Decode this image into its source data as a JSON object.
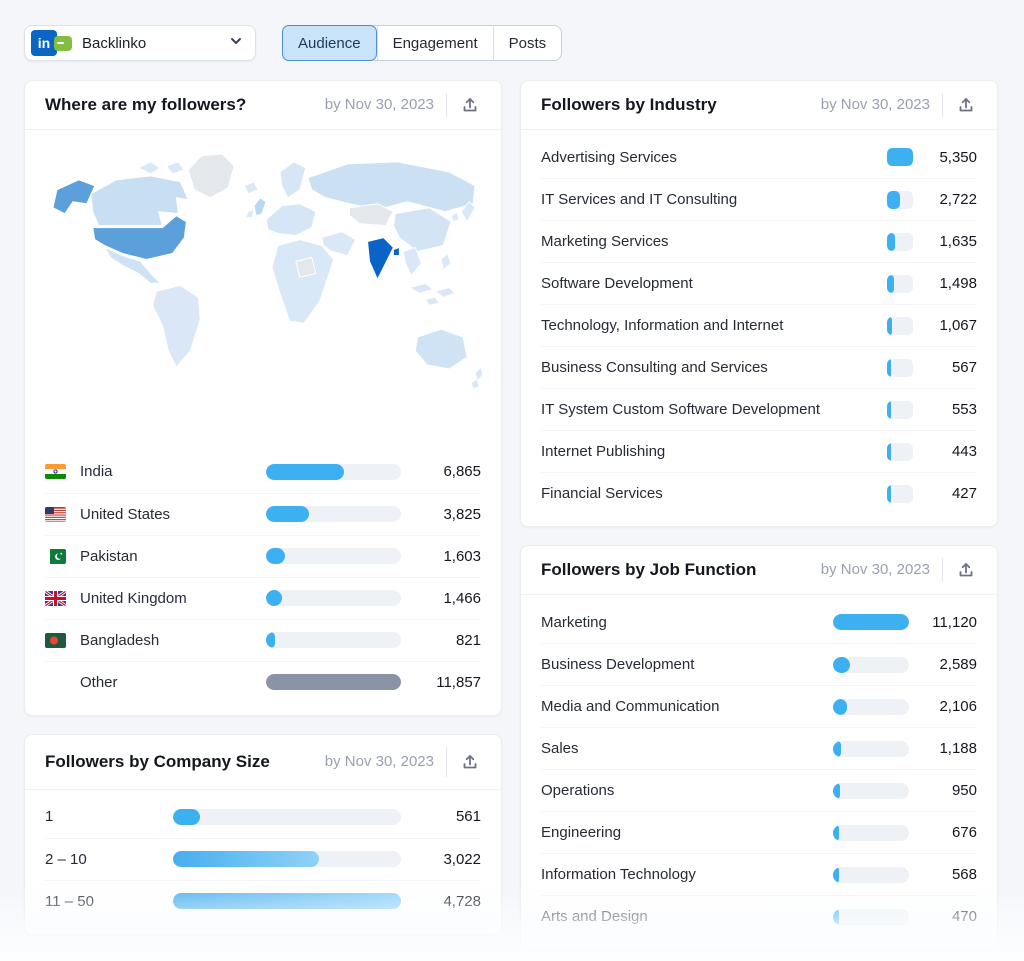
{
  "topbar": {
    "account": {
      "name": "Backlinko",
      "network": "LinkedIn"
    },
    "tabs": [
      {
        "label": "Audience",
        "active": true
      },
      {
        "label": "Engagement",
        "active": false
      },
      {
        "label": "Posts",
        "active": false
      }
    ]
  },
  "colors": {
    "accent_blue": "#3DB0F2",
    "other_gray": "#8B93A7",
    "map_highlight_dark": "#0A63C6",
    "map_highlight_medium": "#5B9FDB",
    "map_land_light": "#D9E7F6",
    "map_no_data": "#E4E7EB",
    "tab_active_bg": "#C9E3F9"
  },
  "icons": {
    "export": "upload-arrow-tray",
    "dropdown": "chevron-down",
    "linkedin": "linkedin-in-square"
  },
  "cards": {
    "map": {
      "title": "Where are my followers?",
      "date": "by Nov 30, 2023",
      "rows": [
        {
          "label": "India",
          "value": "6,865",
          "pct": 58,
          "flag": "in"
        },
        {
          "label": "United States",
          "value": "3,825",
          "pct": 32,
          "flag": "us"
        },
        {
          "label": "Pakistan",
          "value": "1,603",
          "pct": 14,
          "flag": "pk"
        },
        {
          "label": "United Kingdom",
          "value": "1,466",
          "pct": 12,
          "flag": "gb"
        },
        {
          "label": "Bangladesh",
          "value": "821",
          "pct": 7,
          "flag": "bd"
        },
        {
          "label": "Other",
          "value": "11,857",
          "pct": 100,
          "color": "gray"
        }
      ]
    },
    "industry": {
      "title": "Followers by Industry",
      "date": "by Nov 30, 2023",
      "rows": [
        {
          "label": "Advertising Services",
          "value": "5,350",
          "pct": 100
        },
        {
          "label": "IT Services and IT Consulting",
          "value": "2,722",
          "pct": 51
        },
        {
          "label": "Marketing Services",
          "value": "1,635",
          "pct": 31
        },
        {
          "label": "Software Development",
          "value": "1,498",
          "pct": 28
        },
        {
          "label": "Technology, Information and Internet",
          "value": "1,067",
          "pct": 20
        },
        {
          "label": "Business Consulting and Services",
          "value": "567",
          "pct": 11
        },
        {
          "label": "IT System Custom Software Development",
          "value": "553",
          "pct": 10
        },
        {
          "label": "Internet Publishing",
          "value": "443",
          "pct": 8
        },
        {
          "label": "Financial Services",
          "value": "427",
          "pct": 8
        }
      ]
    },
    "company_size": {
      "title": "Followers by Company Size",
      "date": "by Nov 30, 2023",
      "rows": [
        {
          "label": "1",
          "value": "561",
          "pct": 12,
          "grad": false
        },
        {
          "label": "2 – 10",
          "value": "3,022",
          "pct": 64,
          "grad": true
        },
        {
          "label": "11 – 50",
          "value": "4,728",
          "pct": 100,
          "grad": true
        }
      ]
    },
    "job_function": {
      "title": "Followers by Job Function",
      "date": "by Nov 30, 2023",
      "rows": [
        {
          "label": "Marketing",
          "value": "11,120",
          "pct": 100
        },
        {
          "label": "Business Development",
          "value": "2,589",
          "pct": 23
        },
        {
          "label": "Media and Communication",
          "value": "2,106",
          "pct": 19
        },
        {
          "label": "Sales",
          "value": "1,188",
          "pct": 11
        },
        {
          "label": "Operations",
          "value": "950",
          "pct": 9
        },
        {
          "label": "Engineering",
          "value": "676",
          "pct": 6
        },
        {
          "label": "Information Technology",
          "value": "568",
          "pct": 5
        },
        {
          "label": "Arts and Design",
          "value": "470",
          "pct": 4
        }
      ]
    }
  }
}
